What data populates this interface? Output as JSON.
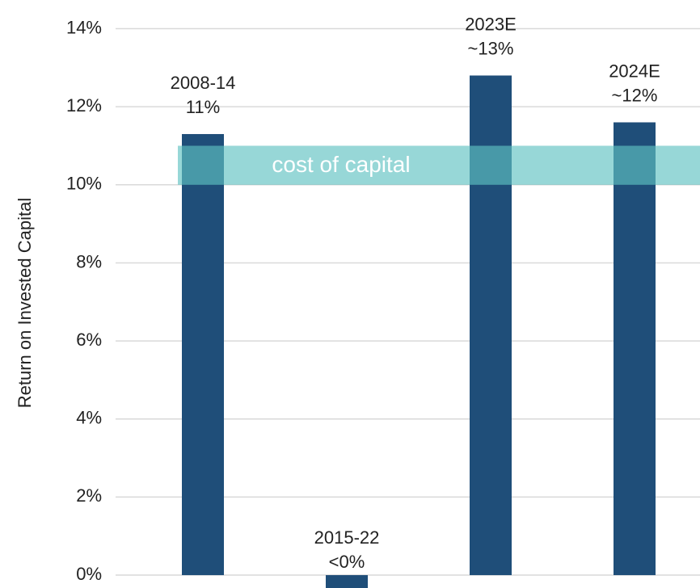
{
  "chart_data": {
    "type": "bar",
    "y_label": "Return on Invested Capital",
    "categories": [
      "2008-14",
      "2015-22",
      "2023E",
      "2024E"
    ],
    "values": [
      11.3,
      -0.4,
      12.8,
      11.6
    ],
    "value_labels": [
      "11%",
      "<0%",
      "~13%",
      "~12%"
    ],
    "color": "#1f4e79",
    "ylim": [
      -0.33,
      14.3
    ],
    "yticks": [
      {
        "value": 0,
        "label": "0%"
      },
      {
        "value": 2,
        "label": "2%"
      },
      {
        "value": 4,
        "label": "4%"
      },
      {
        "value": 6,
        "label": "6%"
      },
      {
        "value": 8,
        "label": "8%"
      },
      {
        "value": 10,
        "label": "10%"
      },
      {
        "value": 12,
        "label": "12%"
      },
      {
        "value": 14,
        "label": "14%"
      }
    ],
    "grid": true,
    "band": {
      "label": "cost of capital",
      "range": [
        10,
        11
      ],
      "color": "#5fc1c1"
    }
  }
}
